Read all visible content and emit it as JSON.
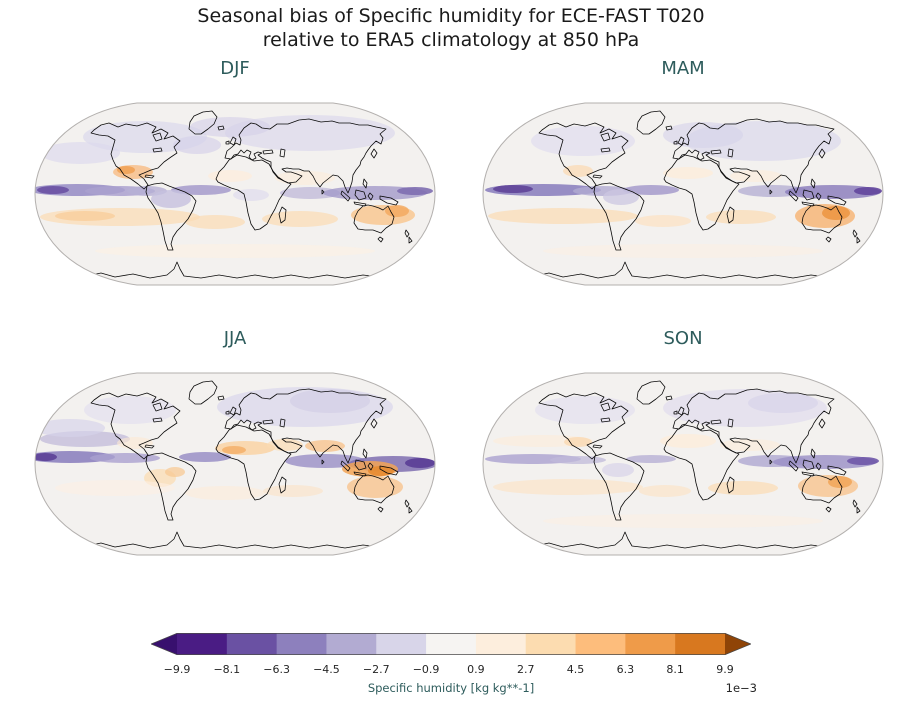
{
  "figure": {
    "title_line1": "Seasonal bias of Specific humidity for ECE-FAST T020",
    "title_line2": "relative to ERA5 climatology at 850 hPa"
  },
  "panels": [
    {
      "id": "djf",
      "label": "DJF"
    },
    {
      "id": "mam",
      "label": "MAM"
    },
    {
      "id": "jja",
      "label": "JJA"
    },
    {
      "id": "son",
      "label": "SON"
    }
  ],
  "colorbar": {
    "ticks": [
      "−9.9",
      "−8.1",
      "−6.3",
      "−4.5",
      "−2.7",
      "−0.9",
      "0.9",
      "2.7",
      "4.5",
      "6.3",
      "8.1",
      "9.9"
    ],
    "label": "Specific humidity [kg kg**-1]",
    "multiplier": "1e−3",
    "segment_colors": [
      "#4a1c84",
      "#6a51a3",
      "#8d80bd",
      "#b2abd2",
      "#d8d5e9",
      "#f6f4f2",
      "#fdeedd",
      "#fcdcb0",
      "#fdbd7c",
      "#ef9b49",
      "#d8781f"
    ],
    "under_arrow_color": "#38106e",
    "over_arrow_color": "#8f4407"
  },
  "colors": {
    "title_text": "#1a1a1a",
    "panel_title": "#2e5c5c",
    "tick_text": "#262626",
    "map_outline": "#b3b0ae",
    "map_background": "#f3f1ef",
    "coastline": "#0a0a0a"
  },
  "chart_data": {
    "type": "heatmap",
    "layout": "2x2 grid of global maps, Robinson projection, shared horizontal colorbar",
    "title": "Seasonal bias of Specific humidity for ECE-FAST T020 relative to ERA5 climatology at 850 hPa",
    "variable": "Specific humidity bias",
    "units": "kg kg**-1, scale factor 1e-3",
    "level": "850 hPa",
    "model": "ECE-FAST T020",
    "reference": "ERA5 climatology",
    "panels": [
      "DJF",
      "MAM",
      "JJA",
      "SON"
    ],
    "colorbar": {
      "colormap": "PuOr reversed (purple = negative/dry bias, orange = positive/moist bias)",
      "boundaries": [
        -9.9,
        -8.1,
        -6.3,
        -4.5,
        -2.7,
        -0.9,
        0.9,
        2.7,
        4.5,
        6.3,
        8.1,
        9.9
      ],
      "extend": "both",
      "label": "Specific humidity [kg kg**-1]"
    },
    "qualitative_patterns": {
      "DJF": "Dry (purple) band along the equatorial Pacific and Atlantic ITCZ and over northern South America; moist (orange) bias across the southern subtropical oceans, around Mexico/Caribbean and eastern Australia; weak light-purple bias over northern mid-to-high latitudes.",
      "MAM": "Stronger dry band across the equatorial central/western Pacific and Indian Ocean toward the Maritime Continent; moist bias over the southern subtropics with a pronounced orange bias over Australia; light purple over Eurasia and North America.",
      "JJA": "Pronounced dry (purple) band just north of the equator in the Pacific, Atlantic and western Pacific/Indian Ocean; moist (orange) bias over the Sahel, Arabia, South Asia, the Maritime Continent and Australia; light purple over Eurasian mid-latitudes.",
      "SON": "Moderate dry band over the equatorial western Pacific and Indian Ocean; moist bias in subtropical bands of both hemispheres and over eastern Australia; light purple over northern mid-latitudes."
    }
  }
}
